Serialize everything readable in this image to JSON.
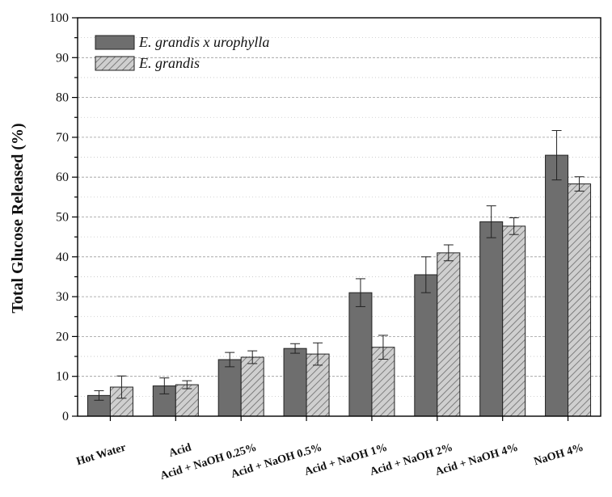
{
  "chart_data": {
    "type": "bar",
    "title": "",
    "xlabel": "",
    "ylabel": "Total Glucose Released (%)",
    "ylim": [
      0,
      100
    ],
    "yticks": [
      0,
      10,
      20,
      30,
      40,
      50,
      60,
      70,
      80,
      90,
      100
    ],
    "grid": true,
    "legend_position": "top-left",
    "categories": [
      "Hot Water",
      "Acid",
      "Acid + NaOH 0.25%",
      "Acid + NaOH 0.5%",
      "Acid + NaOH 1%",
      "Acid + NaOH 2%",
      "Acid + NaOH 4%",
      "NaOH 4%"
    ],
    "series": [
      {
        "name": "E. grandis x urophylla",
        "color": "#6e6e6e",
        "pattern": "solid",
        "values": [
          5.2,
          7.6,
          14.2,
          17.0,
          31.0,
          35.5,
          48.8,
          65.5
        ],
        "errors": [
          1.2,
          2.0,
          1.8,
          1.2,
          3.5,
          4.5,
          4.0,
          6.2
        ]
      },
      {
        "name": "E. grandis",
        "color": "#bdbdbd",
        "pattern": "hatched",
        "values": [
          7.3,
          7.9,
          14.8,
          15.6,
          17.3,
          41.0,
          47.7,
          58.3
        ],
        "errors": [
          2.8,
          1.0,
          1.6,
          2.8,
          3.0,
          2.0,
          2.1,
          1.8
        ]
      }
    ]
  }
}
